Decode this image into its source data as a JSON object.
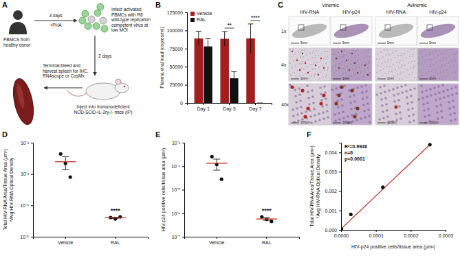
{
  "panel_a": {
    "label": "A",
    "donor": "PBMCS from healthy donor",
    "step1_top": "3 days",
    "step1_bottom": "+PHA",
    "infect": "Infect activated PBMCs with R8 wild-type replication competent virus at low MOI",
    "step2": "2 days",
    "inject": "Inject into Immunodeficient NOD-SCID-IL-2rγ-/- mice (IP)",
    "harvest": "Terminal bleed and harvest spleen for IHC, RNAscope or CosMx"
  },
  "panel_c": {
    "label": "C",
    "groups": [
      "Viremic",
      "Aviremic"
    ],
    "columns": [
      "HIV-RNA",
      "HIV-p24",
      "HIV-RNA",
      "HIV-p24"
    ],
    "rows": [
      "1x",
      "4x",
      "40x"
    ],
    "scale_bars": [
      "5mm",
      "1mm",
      "100µm"
    ]
  },
  "chart_data": [
    {
      "type": "bar",
      "label": "B",
      "categories": [
        "Day 1",
        "Day 3",
        "Day 7"
      ],
      "series": [
        {
          "name": "Vehicle",
          "color": "#a31f1f",
          "values": [
            89000,
            88500,
            89000
          ],
          "errors": [
            10000,
            10000,
            20000
          ]
        },
        {
          "name": "RAL",
          "color": "#111111",
          "values": [
            78000,
            34000,
            0
          ],
          "errors": [
            11000,
            9000,
            0
          ]
        }
      ],
      "ylabel": "Plasma viral load (copies/ml)",
      "ylim": [
        0,
        125000
      ],
      "yticks": [
        0,
        25000,
        50000,
        75000,
        100000,
        125000
      ],
      "legend": "top-left",
      "annotations": [
        {
          "text": "**",
          "category": 1
        },
        {
          "text": "****",
          "category": 2
        }
      ]
    },
    {
      "type": "scatter",
      "label": "D",
      "categories": [
        "Vehicle",
        "RAL"
      ],
      "points": [
        [
          0.0044,
          0.0022,
          0.0008
        ],
        [
          4.1e-05,
          3.7e-05,
          4.3e-05
        ]
      ],
      "means": [
        0.00247,
        4.03e-05
      ],
      "errors": [
        0.0011,
        1.8e-06
      ],
      "ylabel": [
        "Total HIV-RNA Area/Tissue Area (µm²)",
        "*Avg HIV-RNA Optical Density"
      ],
      "log": "y",
      "ylim": [
        1e-05,
        0.01
      ],
      "yticks": [
        {
          "value": 0.01,
          "label": "10⁻²"
        },
        {
          "value": 0.001,
          "label": "10⁻³"
        },
        {
          "value": 0.0001,
          "label": "10⁻⁴"
        },
        {
          "value": 1e-05,
          "label": "10⁻⁵"
        }
      ],
      "annotations": [
        {
          "text": "****",
          "category": 1
        }
      ]
    },
    {
      "type": "scatter",
      "label": "E",
      "categories": [
        "Vehicle",
        "RAL"
      ],
      "points": [
        [
          0.000255,
          0.00012,
          2.8e-05
        ],
        [
          7e-07,
          5.5e-07,
          4.5e-07
        ]
      ],
      "means": [
        0.000134,
        5.7e-07
      ],
      "errors": [
        6.6e-05,
        7e-08
      ],
      "ylabel": [
        "HIV-p24 positive cells/tissue area (µm²)"
      ],
      "log": "y",
      "ylim": [
        1e-07,
        0.001
      ],
      "yticks": [
        {
          "value": 0.001,
          "label": "10⁻³"
        },
        {
          "value": 0.0001,
          "label": "10⁻⁴"
        },
        {
          "value": 1e-05,
          "label": "10⁻⁵"
        },
        {
          "value": 1e-06,
          "label": "10⁻⁶"
        },
        {
          "value": 1e-07,
          "label": "10⁻⁷"
        }
      ],
      "annotations": [
        {
          "text": "****",
          "category": 1
        }
      ]
    },
    {
      "type": "scatter",
      "label": "F",
      "x": [
        0.000255,
        0.00012,
        2.8e-05,
        7e-07,
        5.5e-07,
        4.5e-07
      ],
      "values": [
        0.0044,
        0.0022,
        0.0008,
        4.1e-05,
        3.7e-05,
        4.3e-05
      ],
      "fit": {
        "color": "#c0392b",
        "x": [
          0,
          0.000255
        ],
        "values": [
          5e-05,
          0.0044
        ]
      },
      "xlabel": "HIV-p24 positive cells/tissue area (µm²)",
      "ylabel": [
        "Total HIV-RNA Area/Tissue Area (µm²)",
        "*Avg HIV-RNA Optical Density"
      ],
      "xlim": [
        0,
        0.0003
      ],
      "xticks": [
        {
          "value": 0,
          "label": "0.0000"
        },
        {
          "value": 0.0001,
          "label": "0.0001"
        },
        {
          "value": 0.0002,
          "label": "0.0002"
        },
        {
          "value": 0.0003,
          "label": "0.0003"
        }
      ],
      "ylim": [
        0,
        0.0045
      ],
      "yticks": [
        {
          "value": 0,
          "label": "0.000"
        },
        {
          "value": 0.001,
          "label": "0.001"
        },
        {
          "value": 0.002,
          "label": "0.002"
        },
        {
          "value": 0.003,
          "label": "0.003"
        },
        {
          "value": 0.004,
          "label": "0.004"
        }
      ],
      "annotations": [
        "R²=0.9948",
        "n=6",
        "p<0.0001"
      ]
    }
  ]
}
